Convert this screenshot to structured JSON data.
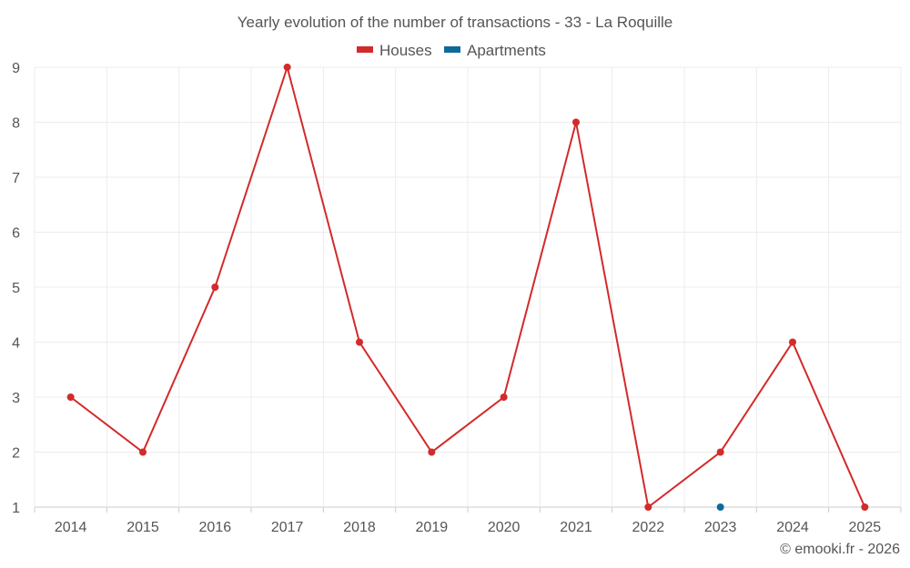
{
  "chart_data": {
    "type": "line",
    "title": "Yearly evolution of the number of transactions - 33 - La Roquille",
    "categories": [
      "2014",
      "2015",
      "2016",
      "2017",
      "2018",
      "2019",
      "2020",
      "2021",
      "2022",
      "2023",
      "2024",
      "2025"
    ],
    "series": [
      {
        "name": "Houses",
        "color": "#d32a2a",
        "show_line": true,
        "values": [
          3,
          2,
          5,
          9,
          4,
          2,
          3,
          8,
          1,
          2,
          4,
          1
        ]
      },
      {
        "name": "Apartments",
        "color": "#0e6a9a",
        "show_line": false,
        "values": [
          null,
          null,
          null,
          null,
          null,
          null,
          null,
          null,
          null,
          1,
          null,
          null
        ]
      }
    ],
    "y_ticks": [
      1,
      2,
      3,
      4,
      5,
      6,
      7,
      8,
      9
    ],
    "ylim": [
      1,
      9
    ],
    "grid": true,
    "legend_position": "top-center",
    "xlabel": "",
    "ylabel": ""
  },
  "credit": "© emooki.fr - 2026"
}
